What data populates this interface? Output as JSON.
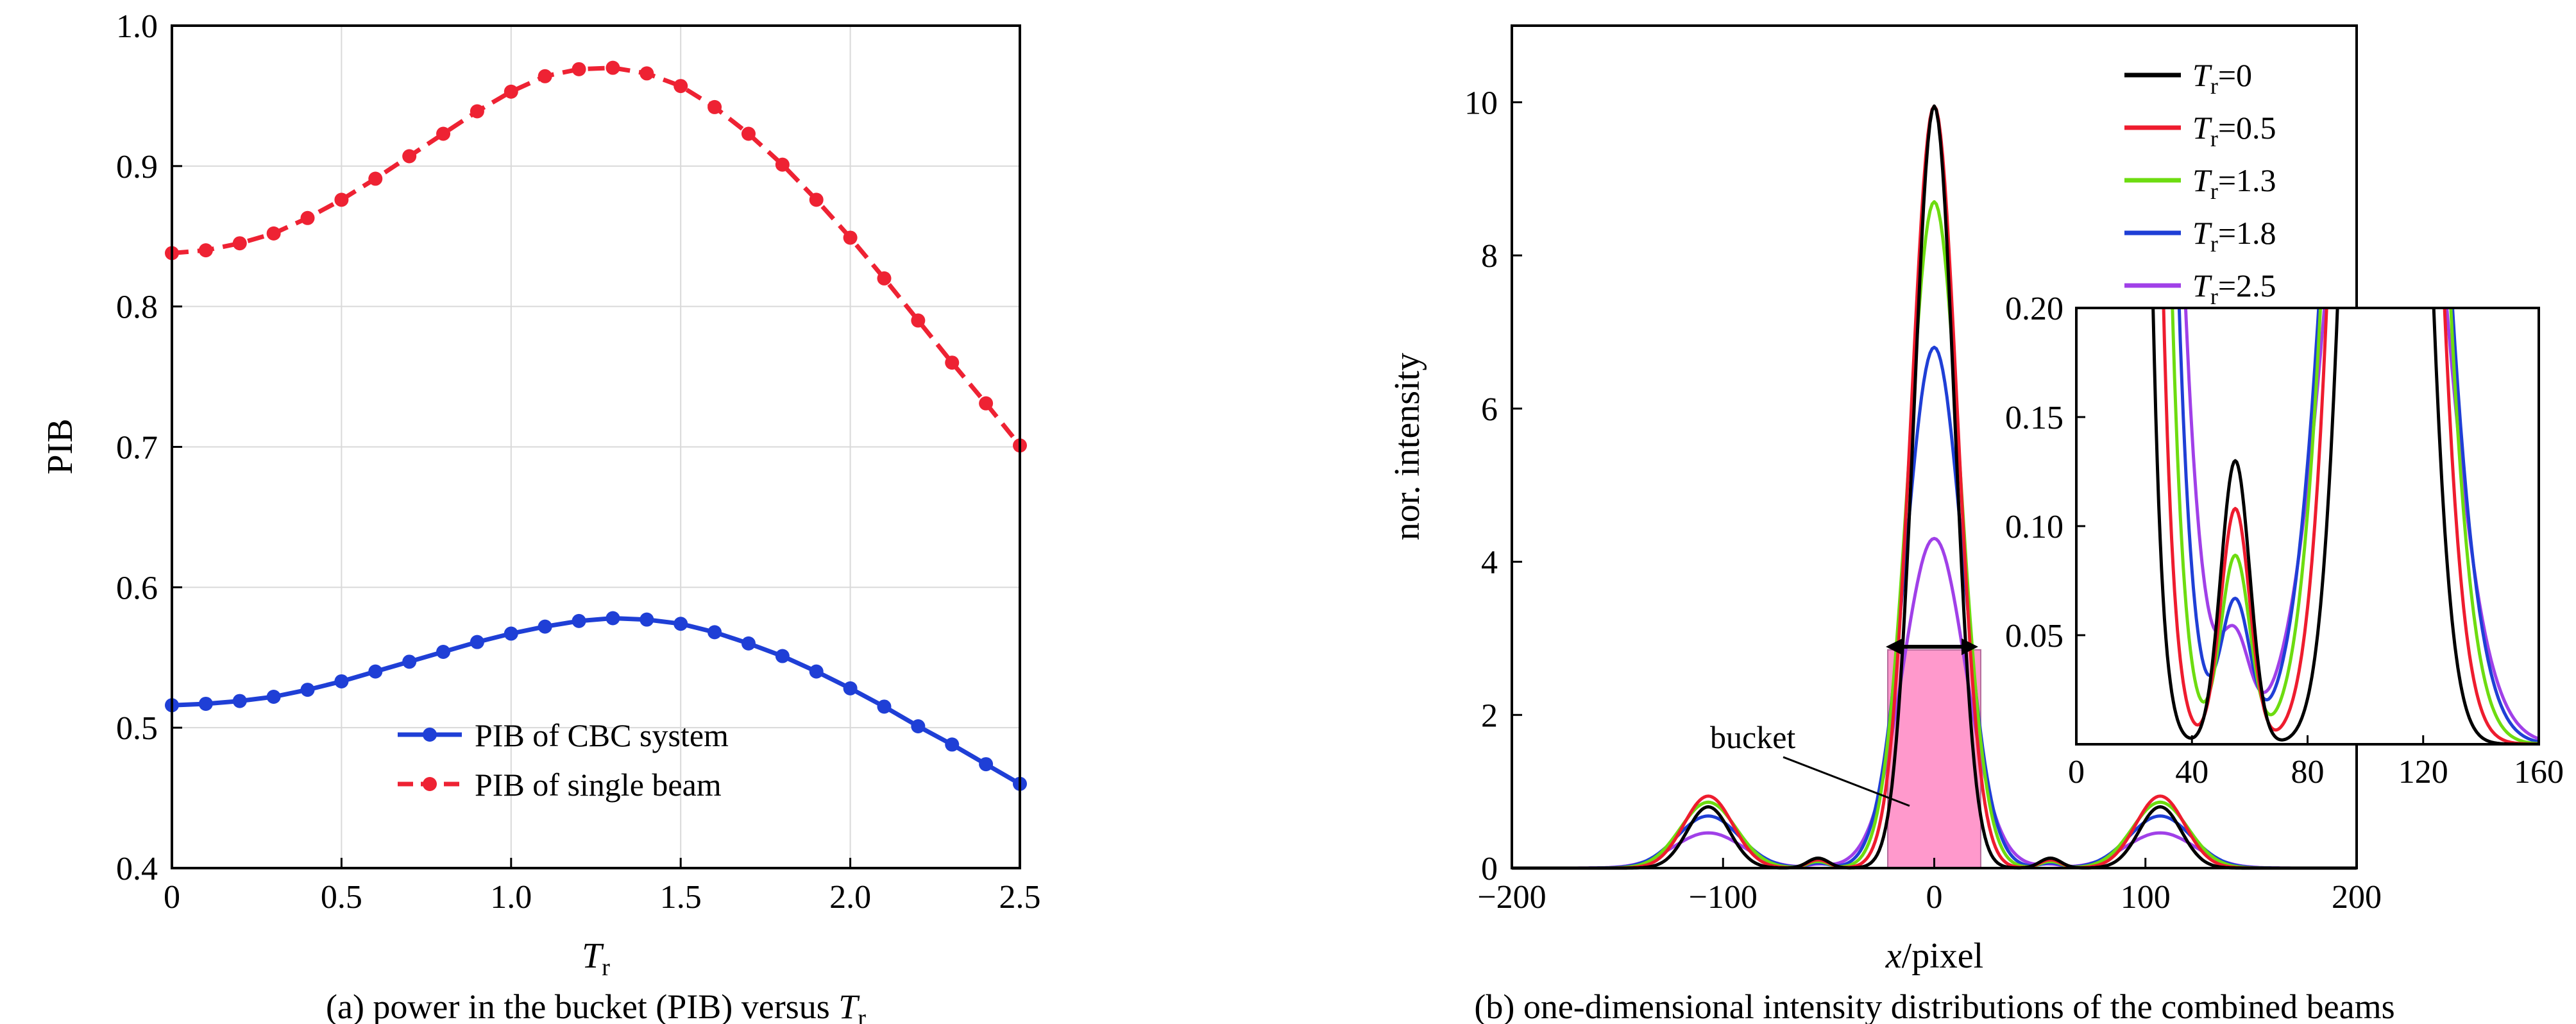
{
  "chart_data": [
    {
      "type": "line",
      "caption_text": "(a) power in the bucket (PIB) versus ",
      "caption_var": "T",
      "caption_sub": "r",
      "xlabel_var": "T",
      "xlabel_sub": "r",
      "ylabel": "PIB",
      "xlim": [
        0,
        2.5
      ],
      "ylim": [
        0.4,
        1.0
      ],
      "xticks": [
        "0",
        "0.5",
        "1.0",
        "1.5",
        "2.0",
        "2.5"
      ],
      "yticks": [
        "0.4",
        "0.5",
        "0.6",
        "0.7",
        "0.8",
        "0.9",
        "1.0"
      ],
      "grid": true,
      "legend_position": "bottom-center",
      "series": [
        {
          "name": "PIB of CBC system",
          "color": "#1f3fd6",
          "style": "solid",
          "x": [
            0,
            0.1,
            0.2,
            0.3,
            0.4,
            0.5,
            0.6,
            0.7,
            0.8,
            0.9,
            1.0,
            1.1,
            1.2,
            1.3,
            1.4,
            1.5,
            1.6,
            1.7,
            1.8,
            1.9,
            2.0,
            2.1,
            2.2,
            2.3,
            2.4,
            2.5
          ],
          "y": [
            0.516,
            0.517,
            0.519,
            0.522,
            0.527,
            0.533,
            0.54,
            0.547,
            0.554,
            0.561,
            0.567,
            0.572,
            0.576,
            0.578,
            0.577,
            0.574,
            0.568,
            0.56,
            0.551,
            0.54,
            0.528,
            0.515,
            0.501,
            0.488,
            0.474,
            0.46
          ]
        },
        {
          "name": "PIB of single beam",
          "color": "#ee2233",
          "style": "dashed",
          "x": [
            0,
            0.1,
            0.2,
            0.3,
            0.4,
            0.5,
            0.6,
            0.7,
            0.8,
            0.9,
            1.0,
            1.1,
            1.2,
            1.3,
            1.4,
            1.5,
            1.6,
            1.7,
            1.8,
            1.9,
            2.0,
            2.1,
            2.2,
            2.3,
            2.4,
            2.5
          ],
          "y": [
            0.838,
            0.84,
            0.845,
            0.852,
            0.863,
            0.876,
            0.891,
            0.907,
            0.923,
            0.939,
            0.953,
            0.964,
            0.969,
            0.97,
            0.966,
            0.957,
            0.942,
            0.923,
            0.901,
            0.876,
            0.849,
            0.82,
            0.79,
            0.76,
            0.731,
            0.701
          ]
        }
      ]
    },
    {
      "type": "line",
      "caption_text": "(b) one-dimensional intensity distributions of the combined beams",
      "xlabel_var": "x",
      "xlabel_rest": "/pixel",
      "ylabel": "nor. intensity",
      "xlim": [
        -200,
        200
      ],
      "ylim": [
        0,
        11
      ],
      "xticks": [
        "−200",
        "−100",
        "0",
        "100",
        "200"
      ],
      "yticks": [
        "0",
        "2",
        "4",
        "6",
        "8",
        "10"
      ],
      "grid": false,
      "legend_position": "top-right",
      "bucket_label": "bucket",
      "bucket_range": [
        -22,
        22
      ],
      "bucket_height": 2.85,
      "bucket_color": "#ff99cc",
      "series": [
        {
          "name_var": "T",
          "name_sub": "r",
          "name_val": "=0",
          "color": "#000000",
          "peak": 9.95,
          "side": 0.8
        },
        {
          "name_var": "T",
          "name_sub": "r",
          "name_val": "=0.5",
          "color": "#ee1c2e",
          "peak": 9.95,
          "side": 0.94
        },
        {
          "name_var": "T",
          "name_sub": "r",
          "name_val": "=1.3",
          "color": "#6ddc10",
          "peak": 8.7,
          "side": 0.86
        },
        {
          "name_var": "T",
          "name_sub": "r",
          "name_val": "=1.8",
          "color": "#1f3fd6",
          "peak": 6.8,
          "side": 0.68
        },
        {
          "name_var": "T",
          "name_sub": "r",
          "name_val": "=2.5",
          "color": "#a040e8",
          "peak": 4.3,
          "side": 0.46
        }
      ],
      "inset": {
        "xlim": [
          0,
          160
        ],
        "ylim": [
          0,
          0.2
        ],
        "xticks": [
          "0",
          "40",
          "80",
          "120",
          "160"
        ],
        "yticks": [
          "0.05",
          "0.10",
          "0.15",
          "0.20"
        ]
      }
    }
  ]
}
